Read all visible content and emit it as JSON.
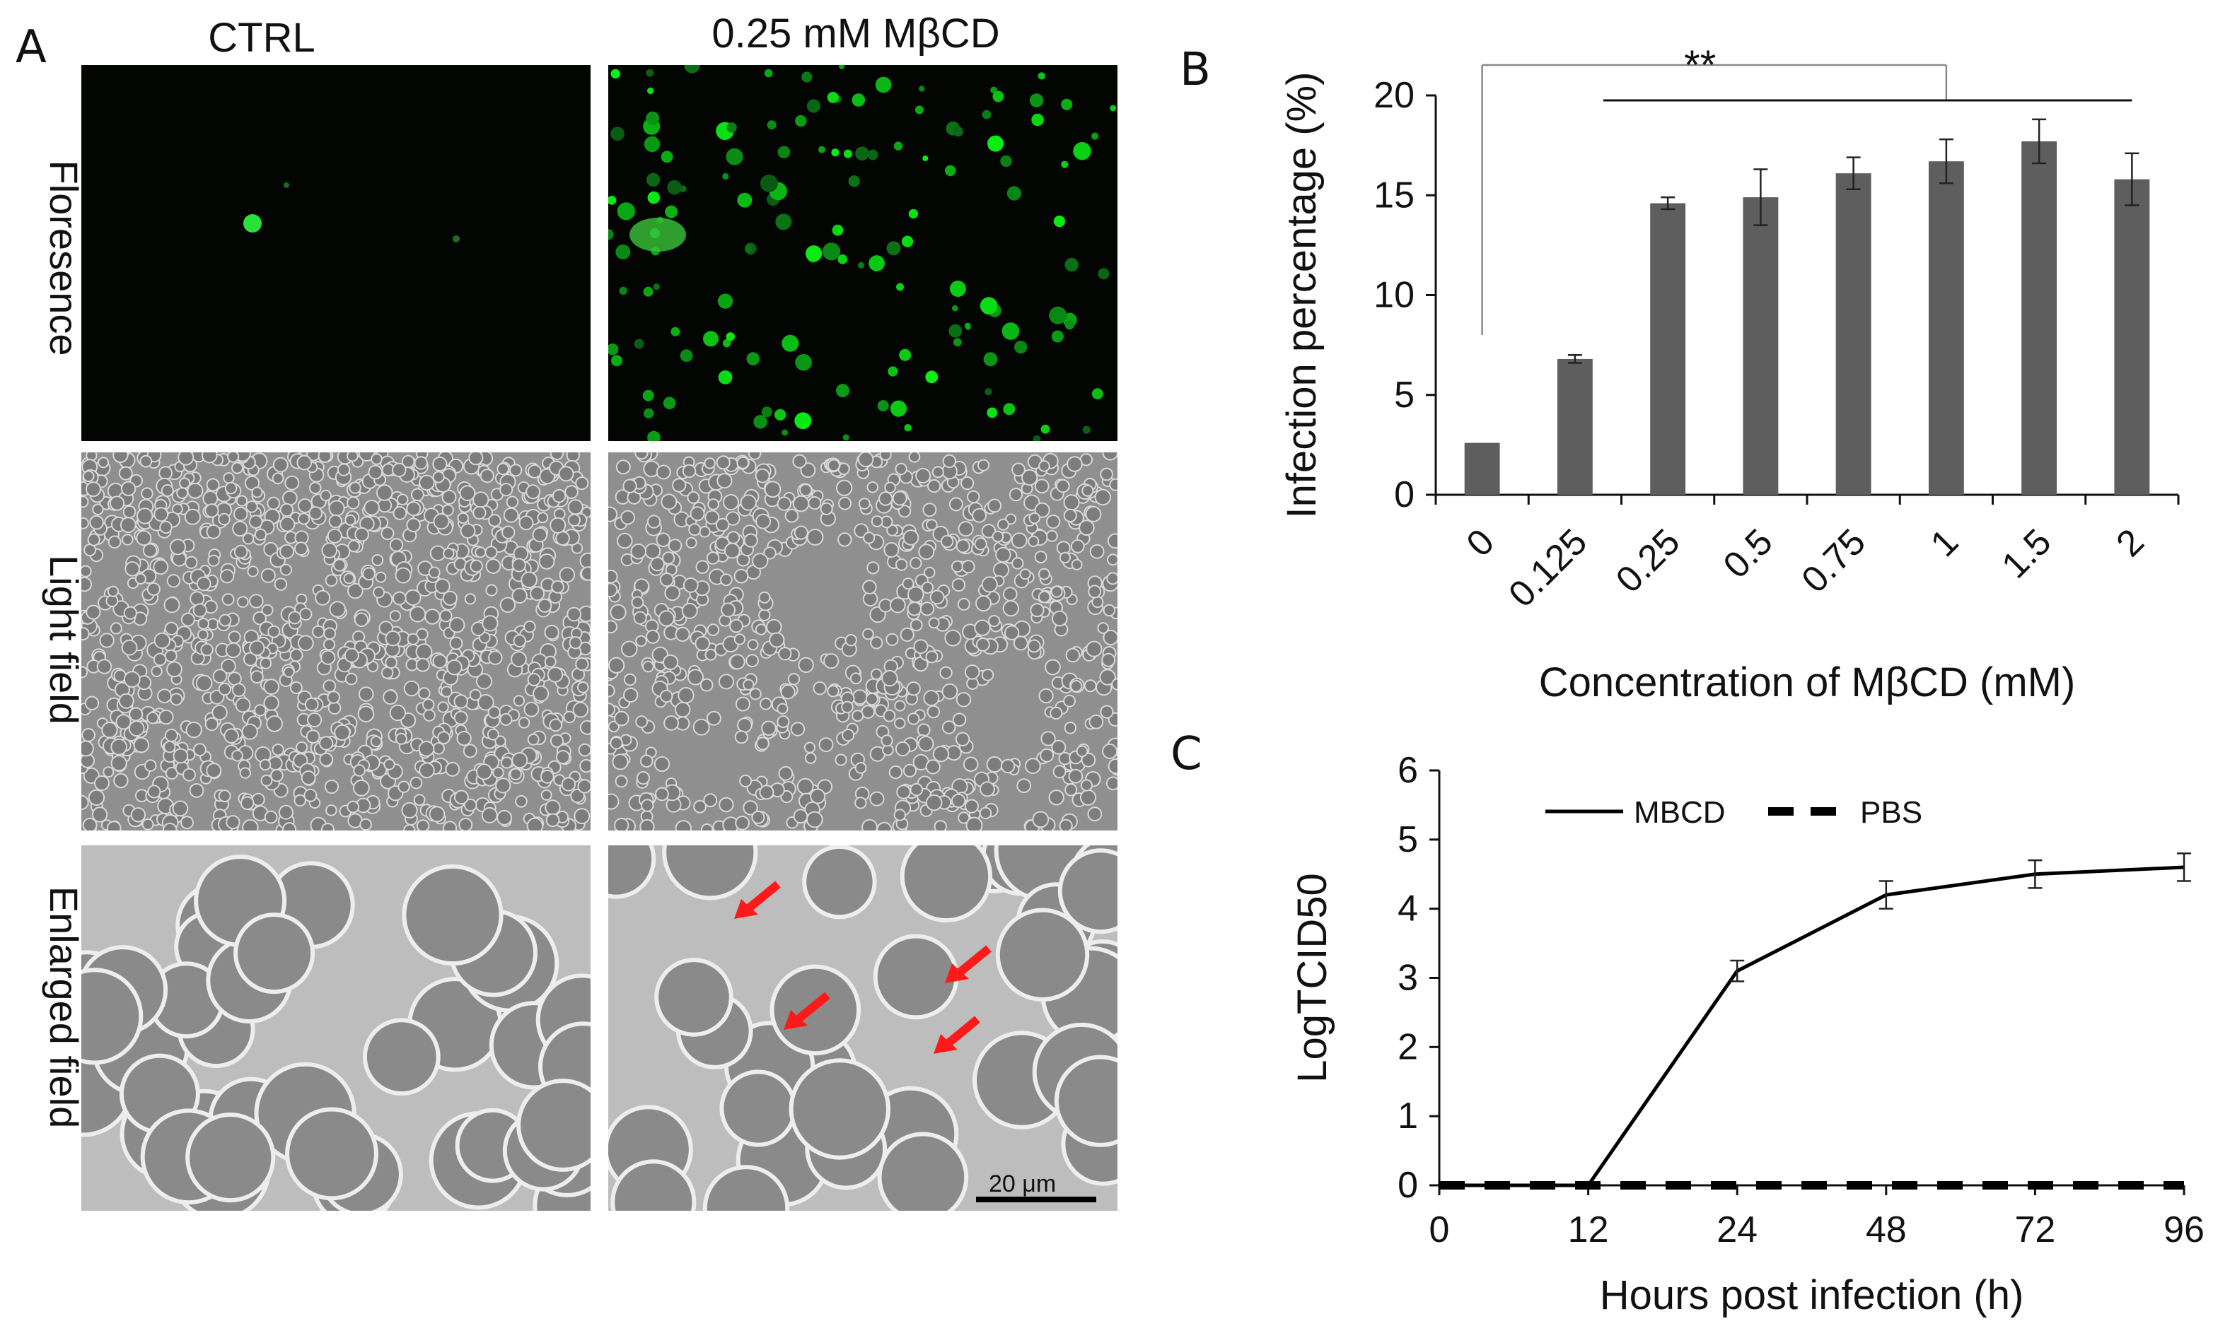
{
  "panel_a": {
    "letter": "A",
    "columns": [
      "CTRL",
      "0.25 mM MβCD"
    ],
    "rows": [
      "Floresence",
      "Light field",
      "Enlarged field"
    ],
    "scale_bar_label": "20 μm"
  },
  "chart_data": [
    {
      "panel": "B",
      "type": "bar",
      "ylabel": "Infection percentage (%)",
      "xlabel": "Concentration of MβCD (mM)",
      "categories": [
        "0",
        "0.125",
        "0.25",
        "0.5",
        "0.75",
        "1",
        "1.5",
        "2"
      ],
      "values": [
        2.6,
        6.8,
        14.6,
        14.9,
        16.1,
        16.7,
        17.7,
        15.8
      ],
      "errors": [
        0,
        0.2,
        0.3,
        1.4,
        0.8,
        1.1,
        1.1,
        1.3
      ],
      "ylim": [
        0,
        20
      ],
      "yticks": [
        0,
        5,
        10,
        15,
        20
      ],
      "significance": "**",
      "bar_color": "#5e5e5e",
      "grid": false
    },
    {
      "panel": "C",
      "type": "line",
      "ylabel": "LogTCID50",
      "xlabel": "Hours post infection (h)",
      "x": [
        0,
        12,
        24,
        48,
        72,
        96
      ],
      "xticks": [
        "0",
        "12",
        "24",
        "48",
        "72",
        "96"
      ],
      "ylim": [
        0,
        6
      ],
      "yticks": [
        0,
        1,
        2,
        3,
        4,
        5,
        6
      ],
      "legend_position": "top",
      "series": [
        {
          "name": "MBCD",
          "style": "solid",
          "values": [
            0,
            0,
            3.1,
            4.2,
            4.5,
            4.6
          ],
          "errors": [
            0,
            0,
            0.15,
            0.2,
            0.2,
            0.2
          ]
        },
        {
          "name": "PBS",
          "style": "dashed",
          "values": [
            0,
            0,
            0,
            0,
            0,
            0
          ],
          "errors": [
            0,
            0,
            0,
            0,
            0,
            0
          ]
        }
      ],
      "grid": false
    }
  ]
}
